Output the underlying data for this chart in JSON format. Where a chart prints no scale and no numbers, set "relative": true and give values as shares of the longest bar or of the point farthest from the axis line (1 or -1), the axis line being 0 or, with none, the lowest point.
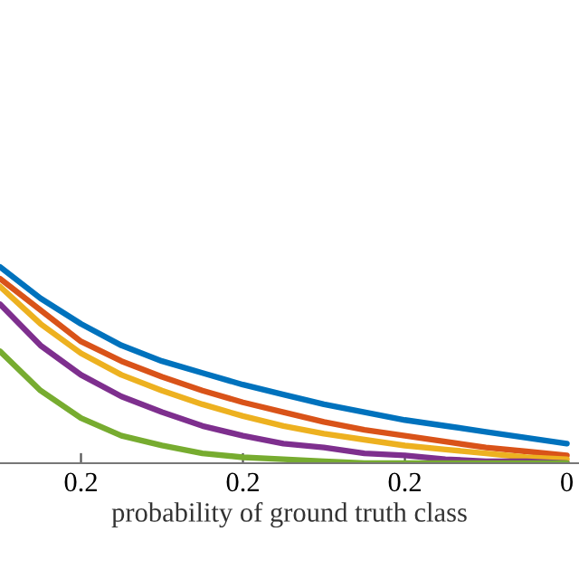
{
  "chart_data": {
    "type": "line",
    "relative": true,
    "xlabel": "probability of ground truth class",
    "categories": [
      null,
      null,
      "0.2",
      null,
      null,
      null,
      "0.2",
      null,
      null,
      null,
      "0.2",
      null,
      null,
      null,
      "0"
    ],
    "tick_labels": "x",
    "grid": false,
    "marker": "none",
    "line_style": "solid",
    "series": [
      {
        "color": "#0072bd",
        "values": [
          1.0,
          0.84,
          0.71,
          0.6,
          0.52,
          0.46,
          0.4,
          0.35,
          0.3,
          0.26,
          0.22,
          0.19,
          0.16,
          0.13,
          0.1
        ]
      },
      {
        "color": "#d95319",
        "values": [
          0.94,
          0.78,
          0.62,
          0.52,
          0.44,
          0.37,
          0.31,
          0.26,
          0.21,
          0.17,
          0.14,
          0.11,
          0.08,
          0.06,
          0.04
        ]
      },
      {
        "color": "#edb120",
        "values": [
          0.9,
          0.71,
          0.56,
          0.45,
          0.37,
          0.3,
          0.24,
          0.19,
          0.15,
          0.12,
          0.09,
          0.07,
          0.05,
          0.03,
          0.02
        ]
      },
      {
        "color": "#7e2f8e",
        "values": [
          0.81,
          0.6,
          0.45,
          0.34,
          0.26,
          0.19,
          0.14,
          0.1,
          0.08,
          0.05,
          0.04,
          0.02,
          0.01,
          0.01,
          0.0
        ]
      },
      {
        "color": "#77ac30",
        "values": [
          0.57,
          0.37,
          0.23,
          0.14,
          0.09,
          0.05,
          0.03,
          0.02,
          0.01,
          0.0,
          0.0,
          0.0,
          0.0,
          0.0,
          0.0
        ]
      }
    ]
  }
}
